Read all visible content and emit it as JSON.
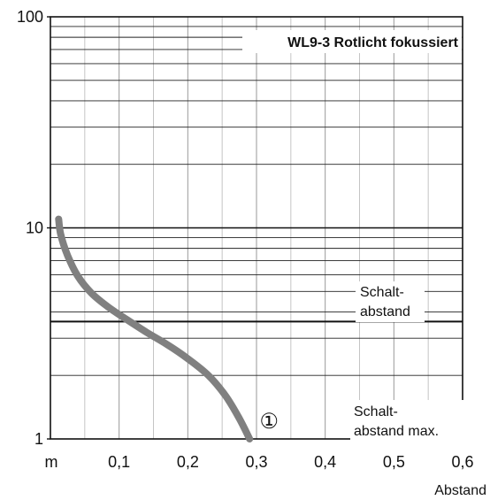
{
  "chart_data": {
    "type": "line",
    "title": "WL9-3 Rotlicht fokussiert",
    "xlabel": "Abstand",
    "x_unit": "m",
    "xlim": [
      0,
      0.6
    ],
    "x_ticks": [
      "0,1",
      "0,2",
      "0,3",
      "0,4",
      "0,5",
      "0,6"
    ],
    "x_tick_values": [
      0.1,
      0.2,
      0.3,
      0.4,
      0.5,
      0.6
    ],
    "ylim": [
      1,
      100
    ],
    "y_scale": "log",
    "y_ticks": [
      "1",
      "10",
      "100"
    ],
    "y_tick_values": [
      1,
      10,
      100
    ],
    "grid": true,
    "reference_line": {
      "y": 3.6,
      "label_line1": "Schalt-",
      "label_line2": "abstand"
    },
    "lower_label": {
      "line1": "Schalt-",
      "line2": "abstand max."
    },
    "series": [
      {
        "marker_label": "①",
        "color": "#808080",
        "points": [
          {
            "x": 0.012,
            "y": 11.0
          },
          {
            "x": 0.015,
            "y": 9.3
          },
          {
            "x": 0.025,
            "y": 7.4
          },
          {
            "x": 0.04,
            "y": 5.9
          },
          {
            "x": 0.06,
            "y": 4.9
          },
          {
            "x": 0.085,
            "y": 4.2
          },
          {
            "x": 0.11,
            "y": 3.7
          },
          {
            "x": 0.14,
            "y": 3.2
          },
          {
            "x": 0.17,
            "y": 2.8
          },
          {
            "x": 0.2,
            "y": 2.4
          },
          {
            "x": 0.23,
            "y": 2.0
          },
          {
            "x": 0.255,
            "y": 1.6
          },
          {
            "x": 0.275,
            "y": 1.25
          },
          {
            "x": 0.29,
            "y": 1.0
          }
        ]
      }
    ]
  }
}
